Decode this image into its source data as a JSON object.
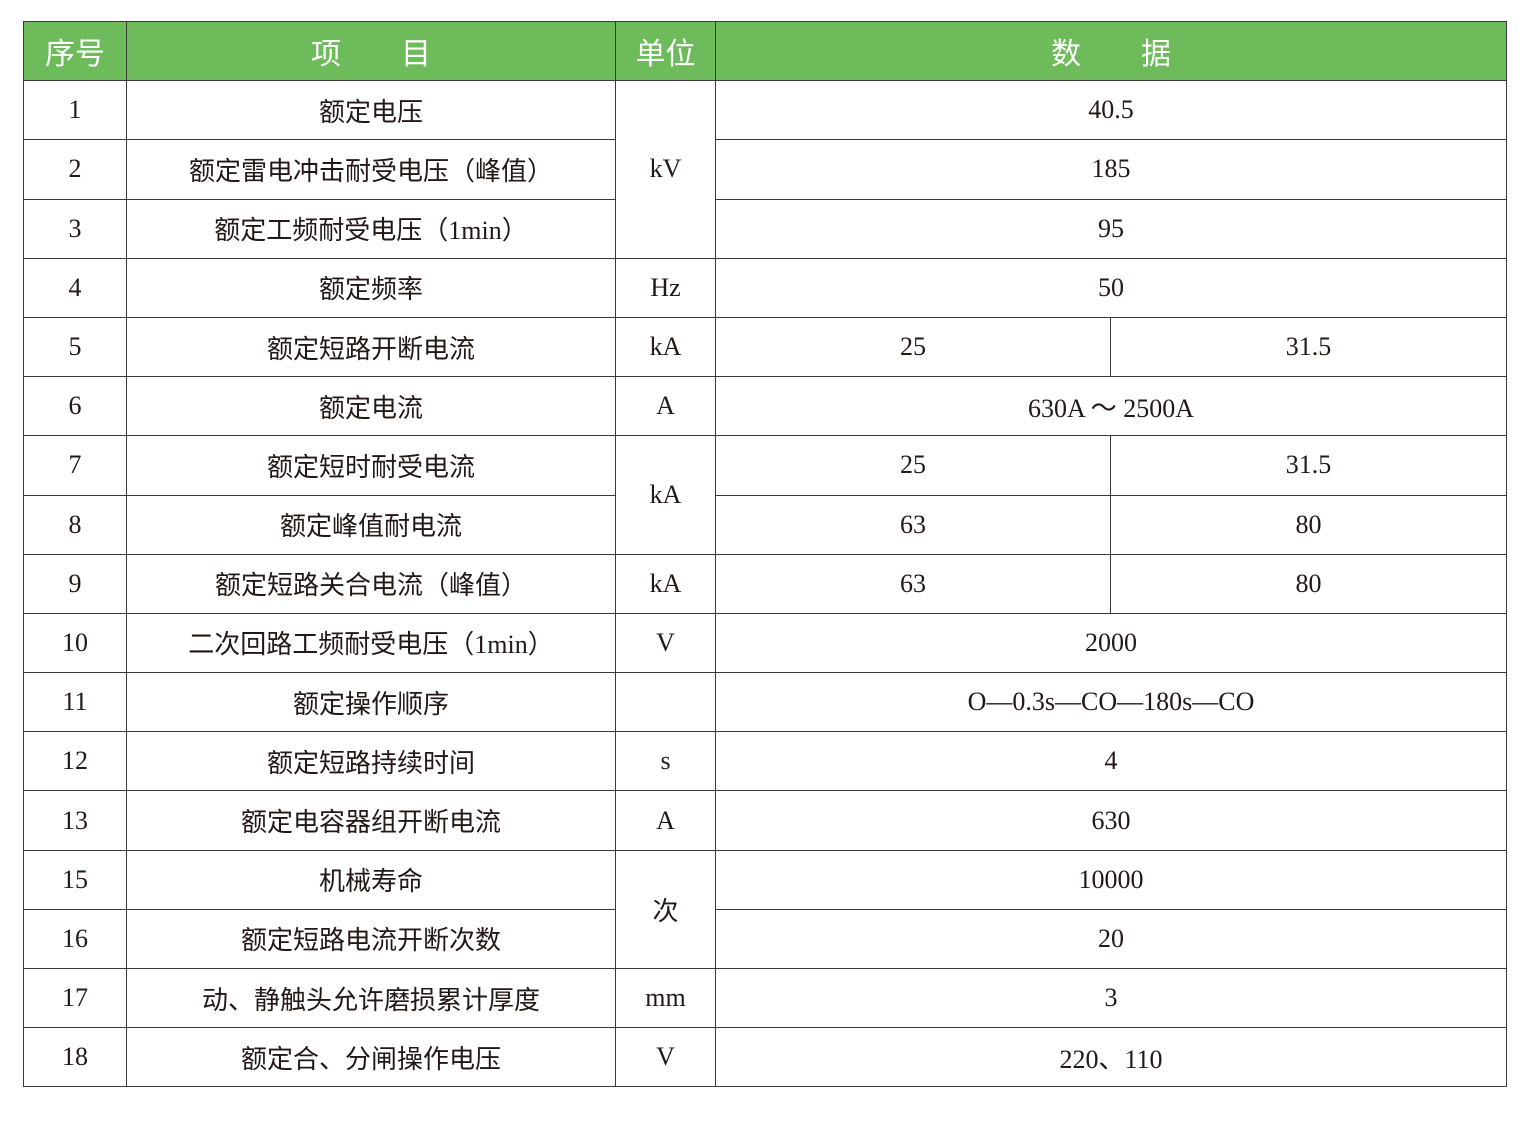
{
  "header": {
    "no": "序号",
    "item": "项　　目",
    "unit": "单位",
    "data": "数　　据"
  },
  "colors": {
    "header_bg": "#6dbb5b",
    "header_text": "#ffffff",
    "border": "#3a3a3a"
  },
  "rows": [
    {
      "no": "1",
      "item": "额定电压",
      "unit": "kV",
      "unit_span": 3,
      "values": [
        "40.5"
      ]
    },
    {
      "no": "2",
      "item": "额定雷电冲击耐受电压（峰值）",
      "values": [
        "185"
      ]
    },
    {
      "no": "3",
      "item": "额定工频耐受电压（1min）",
      "values": [
        "95"
      ]
    },
    {
      "no": "4",
      "item": "额定频率",
      "unit": "Hz",
      "unit_span": 1,
      "values": [
        "50"
      ]
    },
    {
      "no": "5",
      "item": "额定短路开断电流",
      "unit": "kA",
      "unit_span": 1,
      "values": [
        "25",
        "31.5"
      ]
    },
    {
      "no": "6",
      "item": "额定电流",
      "unit": "A",
      "unit_span": 1,
      "values": [
        "630A ～ 2500A"
      ]
    },
    {
      "no": "7",
      "item": "额定短时耐受电流",
      "unit": "kA",
      "unit_span": 2,
      "values": [
        "25",
        "31.5"
      ]
    },
    {
      "no": "8",
      "item": "额定峰值耐电流",
      "values": [
        "63",
        "80"
      ]
    },
    {
      "no": "9",
      "item": "额定短路关合电流（峰值）",
      "unit": "kA",
      "unit_span": 1,
      "values": [
        "63",
        "80"
      ]
    },
    {
      "no": "10",
      "item": "二次回路工频耐受电压（1min）",
      "unit": "V",
      "unit_span": 1,
      "values": [
        "2000"
      ]
    },
    {
      "no": "11",
      "item": "额定操作顺序",
      "unit": "",
      "unit_span": 1,
      "values": [
        "O—0.3s—CO—180s—CO"
      ]
    },
    {
      "no": "12",
      "item": "额定短路持续时间",
      "unit": "s",
      "unit_span": 1,
      "values": [
        "4"
      ]
    },
    {
      "no": "13",
      "item": "额定电容器组开断电流",
      "unit": "A",
      "unit_span": 1,
      "values": [
        "630"
      ]
    },
    {
      "no": "15",
      "item": "机械寿命",
      "unit": "次",
      "unit_span": 2,
      "values": [
        "10000"
      ]
    },
    {
      "no": "16",
      "item": "额定短路电流开断次数",
      "values": [
        "20"
      ]
    },
    {
      "no": "17",
      "item": "动、静触头允许磨损累计厚度",
      "unit": "mm",
      "unit_span": 1,
      "values": [
        "3"
      ]
    },
    {
      "no": "18",
      "item": "额定合、分闸操作电压",
      "unit": "V",
      "unit_span": 1,
      "values": [
        "220、110"
      ]
    }
  ]
}
